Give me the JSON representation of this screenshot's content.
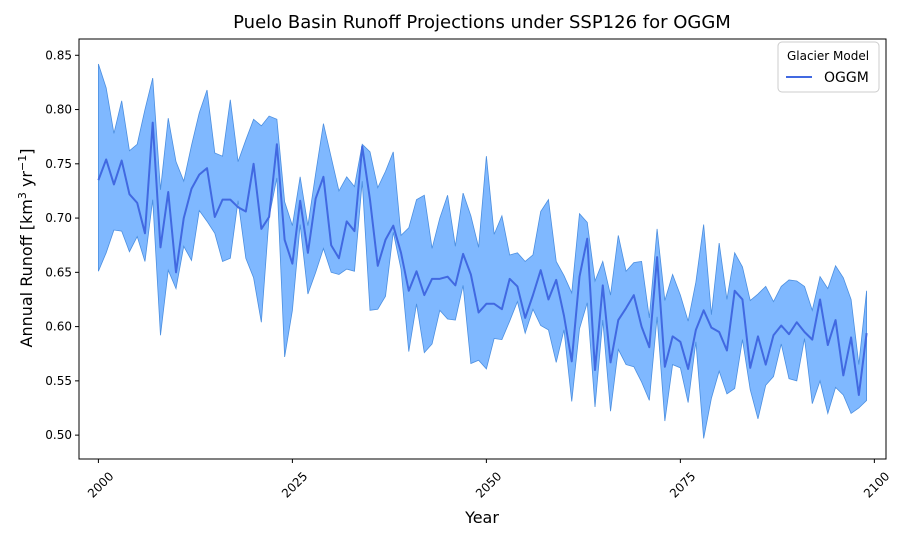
{
  "chart_data": {
    "type": "line",
    "title": "Puelo Basin Runoff Projections under SSP126 for OGGM",
    "xlabel": "Year",
    "ylabel": "Annual Runoff [km³ yr⁻¹]",
    "xlim": [
      1997.5,
      2101.5
    ],
    "ylim": [
      0.478,
      0.865
    ],
    "xticks": [
      2000,
      2025,
      2050,
      2075,
      2100
    ],
    "xtick_labels": [
      "2000",
      "2025",
      "2050",
      "2075",
      "2100"
    ],
    "yticks": [
      0.5,
      0.55,
      0.6,
      0.65,
      0.7,
      0.75,
      0.8,
      0.85
    ],
    "ytick_labels": [
      "0.50",
      "0.55",
      "0.60",
      "0.65",
      "0.70",
      "0.75",
      "0.80",
      "0.85"
    ],
    "grid": false,
    "legend": {
      "title": "Glacier Model",
      "position": "top-right"
    },
    "x": [
      2000,
      2001,
      2002,
      2003,
      2004,
      2005,
      2006,
      2007,
      2008,
      2009,
      2010,
      2011,
      2012,
      2013,
      2014,
      2015,
      2016,
      2017,
      2018,
      2019,
      2020,
      2021,
      2022,
      2023,
      2024,
      2025,
      2026,
      2027,
      2028,
      2029,
      2030,
      2031,
      2032,
      2033,
      2034,
      2035,
      2036,
      2037,
      2038,
      2039,
      2040,
      2041,
      2042,
      2043,
      2044,
      2045,
      2046,
      2047,
      2048,
      2049,
      2050,
      2051,
      2052,
      2053,
      2054,
      2055,
      2056,
      2057,
      2058,
      2059,
      2060,
      2061,
      2062,
      2063,
      2064,
      2065,
      2066,
      2067,
      2068,
      2069,
      2070,
      2071,
      2072,
      2073,
      2074,
      2075,
      2076,
      2077,
      2078,
      2079,
      2080,
      2081,
      2082,
      2083,
      2084,
      2085,
      2086,
      2087,
      2088,
      2089,
      2090,
      2091,
      2092,
      2093,
      2094,
      2095,
      2096,
      2097,
      2098,
      2099
    ],
    "series": [
      {
        "name": "OGGM",
        "color": "#4169E1",
        "band_color": "#7FB8FF",
        "values": [
          0.735,
          0.754,
          0.731,
          0.753,
          0.722,
          0.714,
          0.686,
          0.788,
          0.673,
          0.724,
          0.65,
          0.7,
          0.727,
          0.74,
          0.746,
          0.701,
          0.717,
          0.717,
          0.71,
          0.706,
          0.75,
          0.69,
          0.701,
          0.768,
          0.68,
          0.658,
          0.716,
          0.668,
          0.718,
          0.738,
          0.675,
          0.663,
          0.697,
          0.688,
          0.766,
          0.717,
          0.656,
          0.68,
          0.693,
          0.668,
          0.633,
          0.651,
          0.629,
          0.644,
          0.644,
          0.646,
          0.638,
          0.667,
          0.648,
          0.613,
          0.621,
          0.621,
          0.616,
          0.644,
          0.637,
          0.608,
          0.629,
          0.652,
          0.625,
          0.643,
          0.61,
          0.568,
          0.646,
          0.681,
          0.56,
          0.638,
          0.567,
          0.606,
          0.617,
          0.629,
          0.6,
          0.581,
          0.664,
          0.563,
          0.591,
          0.586,
          0.561,
          0.597,
          0.615,
          0.599,
          0.595,
          0.578,
          0.633,
          0.625,
          0.562,
          0.591,
          0.565,
          0.592,
          0.601,
          0.593,
          0.604,
          0.595,
          0.588,
          0.625,
          0.583,
          0.606,
          0.555,
          0.59,
          0.537,
          0.594
        ],
        "upper": [
          0.842,
          0.82,
          0.778,
          0.808,
          0.762,
          0.768,
          0.8,
          0.829,
          0.726,
          0.792,
          0.752,
          0.734,
          0.767,
          0.797,
          0.818,
          0.76,
          0.757,
          0.809,
          0.752,
          0.772,
          0.791,
          0.785,
          0.794,
          0.791,
          0.715,
          0.693,
          0.738,
          0.693,
          0.741,
          0.787,
          0.756,
          0.725,
          0.738,
          0.729,
          0.768,
          0.761,
          0.728,
          0.743,
          0.761,
          0.684,
          0.691,
          0.717,
          0.721,
          0.672,
          0.7,
          0.721,
          0.674,
          0.723,
          0.702,
          0.673,
          0.757,
          0.685,
          0.702,
          0.666,
          0.668,
          0.66,
          0.666,
          0.706,
          0.717,
          0.66,
          0.647,
          0.631,
          0.704,
          0.696,
          0.642,
          0.66,
          0.629,
          0.684,
          0.651,
          0.659,
          0.66,
          0.608,
          0.69,
          0.624,
          0.648,
          0.629,
          0.605,
          0.641,
          0.694,
          0.611,
          0.677,
          0.625,
          0.668,
          0.655,
          0.624,
          0.63,
          0.637,
          0.623,
          0.637,
          0.643,
          0.642,
          0.637,
          0.615,
          0.646,
          0.635,
          0.656,
          0.645,
          0.625,
          0.565,
          0.633
        ],
        "lower": [
          0.651,
          0.668,
          0.689,
          0.688,
          0.669,
          0.683,
          0.66,
          0.717,
          0.592,
          0.652,
          0.635,
          0.674,
          0.661,
          0.707,
          0.697,
          0.686,
          0.66,
          0.663,
          0.716,
          0.663,
          0.645,
          0.604,
          0.701,
          0.737,
          0.572,
          0.615,
          0.694,
          0.63,
          0.65,
          0.672,
          0.65,
          0.648,
          0.653,
          0.651,
          0.734,
          0.615,
          0.616,
          0.628,
          0.687,
          0.653,
          0.577,
          0.621,
          0.576,
          0.584,
          0.615,
          0.607,
          0.606,
          0.638,
          0.566,
          0.569,
          0.561,
          0.589,
          0.588,
          0.605,
          0.623,
          0.594,
          0.616,
          0.601,
          0.597,
          0.567,
          0.597,
          0.531,
          0.598,
          0.622,
          0.526,
          0.606,
          0.522,
          0.579,
          0.565,
          0.563,
          0.549,
          0.532,
          0.609,
          0.513,
          0.565,
          0.562,
          0.53,
          0.586,
          0.497,
          0.534,
          0.559,
          0.538,
          0.543,
          0.588,
          0.542,
          0.515,
          0.546,
          0.554,
          0.584,
          0.552,
          0.55,
          0.589,
          0.529,
          0.55,
          0.52,
          0.544,
          0.537,
          0.52,
          0.525,
          0.532
        ]
      }
    ]
  }
}
